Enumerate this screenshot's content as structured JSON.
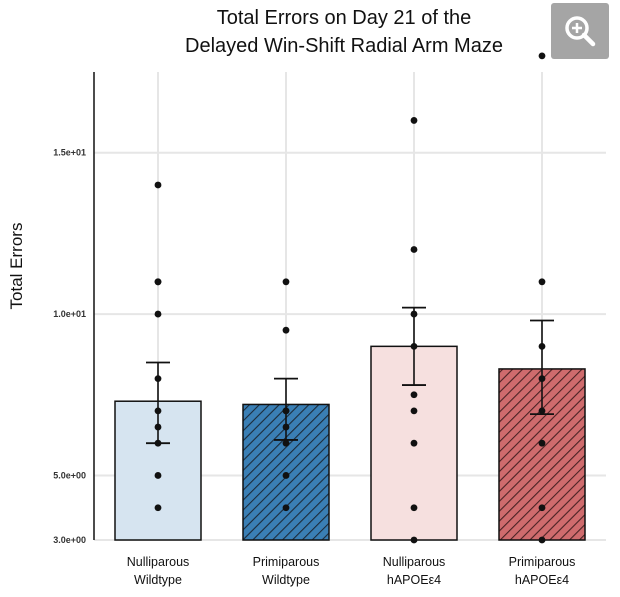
{
  "chart_data": {
    "type": "bar",
    "title": [
      "Total Errors on Day 21 of the",
      "Delayed Win-Shift Radial Arm Maze"
    ],
    "ylabel": "Total Errors",
    "xlabel": "",
    "ylim": [
      3,
      17.5
    ],
    "yticks": [
      {
        "value": 3,
        "label": "3.0e+00"
      },
      {
        "value": 5,
        "label": "5.0e+00"
      },
      {
        "value": 10,
        "label": "1.0e+01"
      },
      {
        "value": 15,
        "label": "1.5e+01"
      }
    ],
    "grid": true,
    "categories": [
      {
        "line1": "Nulliparous",
        "line2": "Wildtype"
      },
      {
        "line1": "Primiparous",
        "line2": "Wildtype"
      },
      {
        "line1": "Nulliparous",
        "line2": "hAPOEε4"
      },
      {
        "line1": "Primiparous",
        "line2": "hAPOEε4"
      }
    ],
    "series": [
      {
        "value": 7.3,
        "err_low": 6.0,
        "err_high": 8.5,
        "fill": "#d6e4f0",
        "hatch": false,
        "points": [
          14,
          11,
          11,
          10,
          8,
          7,
          6.5,
          6,
          5,
          4
        ]
      },
      {
        "value": 7.2,
        "err_low": 6.1,
        "err_high": 8.0,
        "fill": "#3a7fb5",
        "hatch": true,
        "points": [
          11,
          9.5,
          7,
          7,
          6.5,
          6,
          5,
          4
        ]
      },
      {
        "value": 9.0,
        "err_low": 7.8,
        "err_high": 10.2,
        "fill": "#f6e0df",
        "hatch": false,
        "points": [
          16,
          12,
          10,
          9,
          7.5,
          7,
          6,
          4,
          3
        ]
      },
      {
        "value": 8.3,
        "err_low": 6.9,
        "err_high": 9.8,
        "fill": "#cf6b6d",
        "hatch": true,
        "points": [
          18,
          11,
          9,
          8,
          7,
          6,
          4,
          3
        ]
      }
    ]
  },
  "toolbar": {
    "zoom_icon": "zoom-in-icon"
  }
}
